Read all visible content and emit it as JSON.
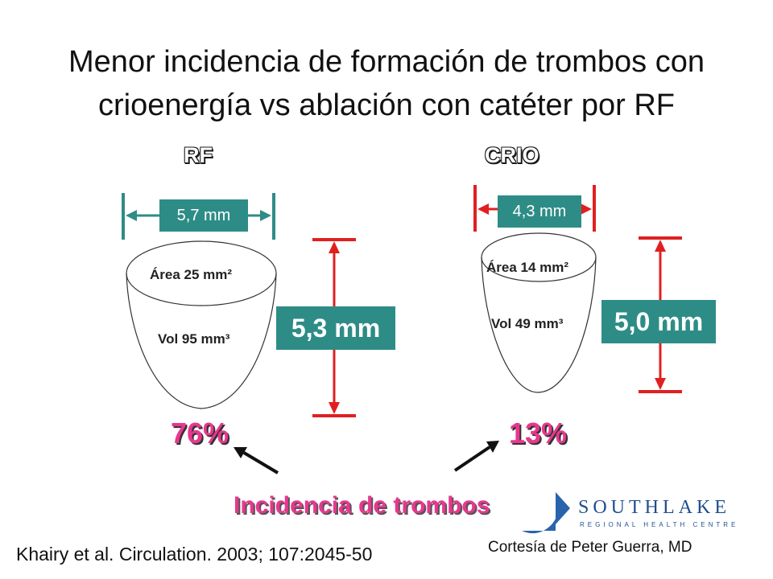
{
  "title_line1": "Menor incidencia de formación de trombos con",
  "title_line2": "crioenergía vs ablación con catéter por RF",
  "rf": {
    "label": "RF",
    "width": "5,7 mm",
    "area": "Área 25 mm²",
    "vol": "Vol 95 mm³",
    "depth": "5,3 mm",
    "incidence": "76%"
  },
  "crio": {
    "label": "CRIO",
    "width": "4,3 mm",
    "area": "Área 14 mm²",
    "vol": "Vol 49 mm³",
    "depth": "5,0 mm",
    "incidence": "13%"
  },
  "incidence_label": "Incidencia de trombos",
  "citation": "Khairy et al. Circulation. 2003; 107:2045-50",
  "credit": "Cortesía de Peter Guerra, MD",
  "logo": {
    "name": "SOUTHLAKE",
    "subtitle": "REGIONAL HEALTH CENTRE"
  },
  "colors": {
    "teal": "#2e8c86",
    "red_marker": "#e02020",
    "magenta": "#e8378f",
    "logo_blue": "#1f4f8f"
  }
}
